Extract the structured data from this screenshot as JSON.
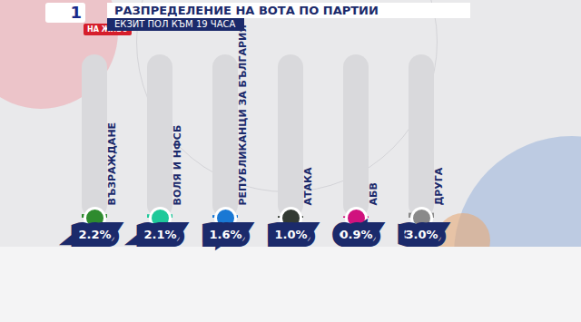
{
  "chart_data": {
    "type": "bar",
    "title": "РАЗПРЕДЕЛЕНИЕ НА ВОТА ПО ПАРТИИ",
    "subtitle": "ЕКЗИТ ПОЛ КЪМ 19 ЧАСА",
    "channel_logo": "1",
    "live_badge": "НА ЖИВО",
    "categories": [
      "ВЪЗРАЖДАНЕ",
      "ВОЛЯ И НФСБ",
      "РЕПУБЛИКАНЦИ ЗА БЪЛГАРИЯ",
      "АТАКА",
      "АБВ",
      "ДРУГА"
    ],
    "values": [
      2.2,
      2.1,
      1.6,
      1.0,
      0.9,
      3.0
    ],
    "value_labels": [
      "2.2%",
      "2.1%",
      "1.6%",
      "1.0%",
      "0.9%",
      "3.0%"
    ],
    "colors": [
      "#2e8b2e",
      "#1ec99a",
      "#1a78d4",
      "#333a33",
      "#d0127e",
      "#8a8a8a"
    ],
    "ylim": [
      0,
      100
    ],
    "yticks": [],
    "grid": false,
    "data_labels": true,
    "tick_labels": "x"
  }
}
